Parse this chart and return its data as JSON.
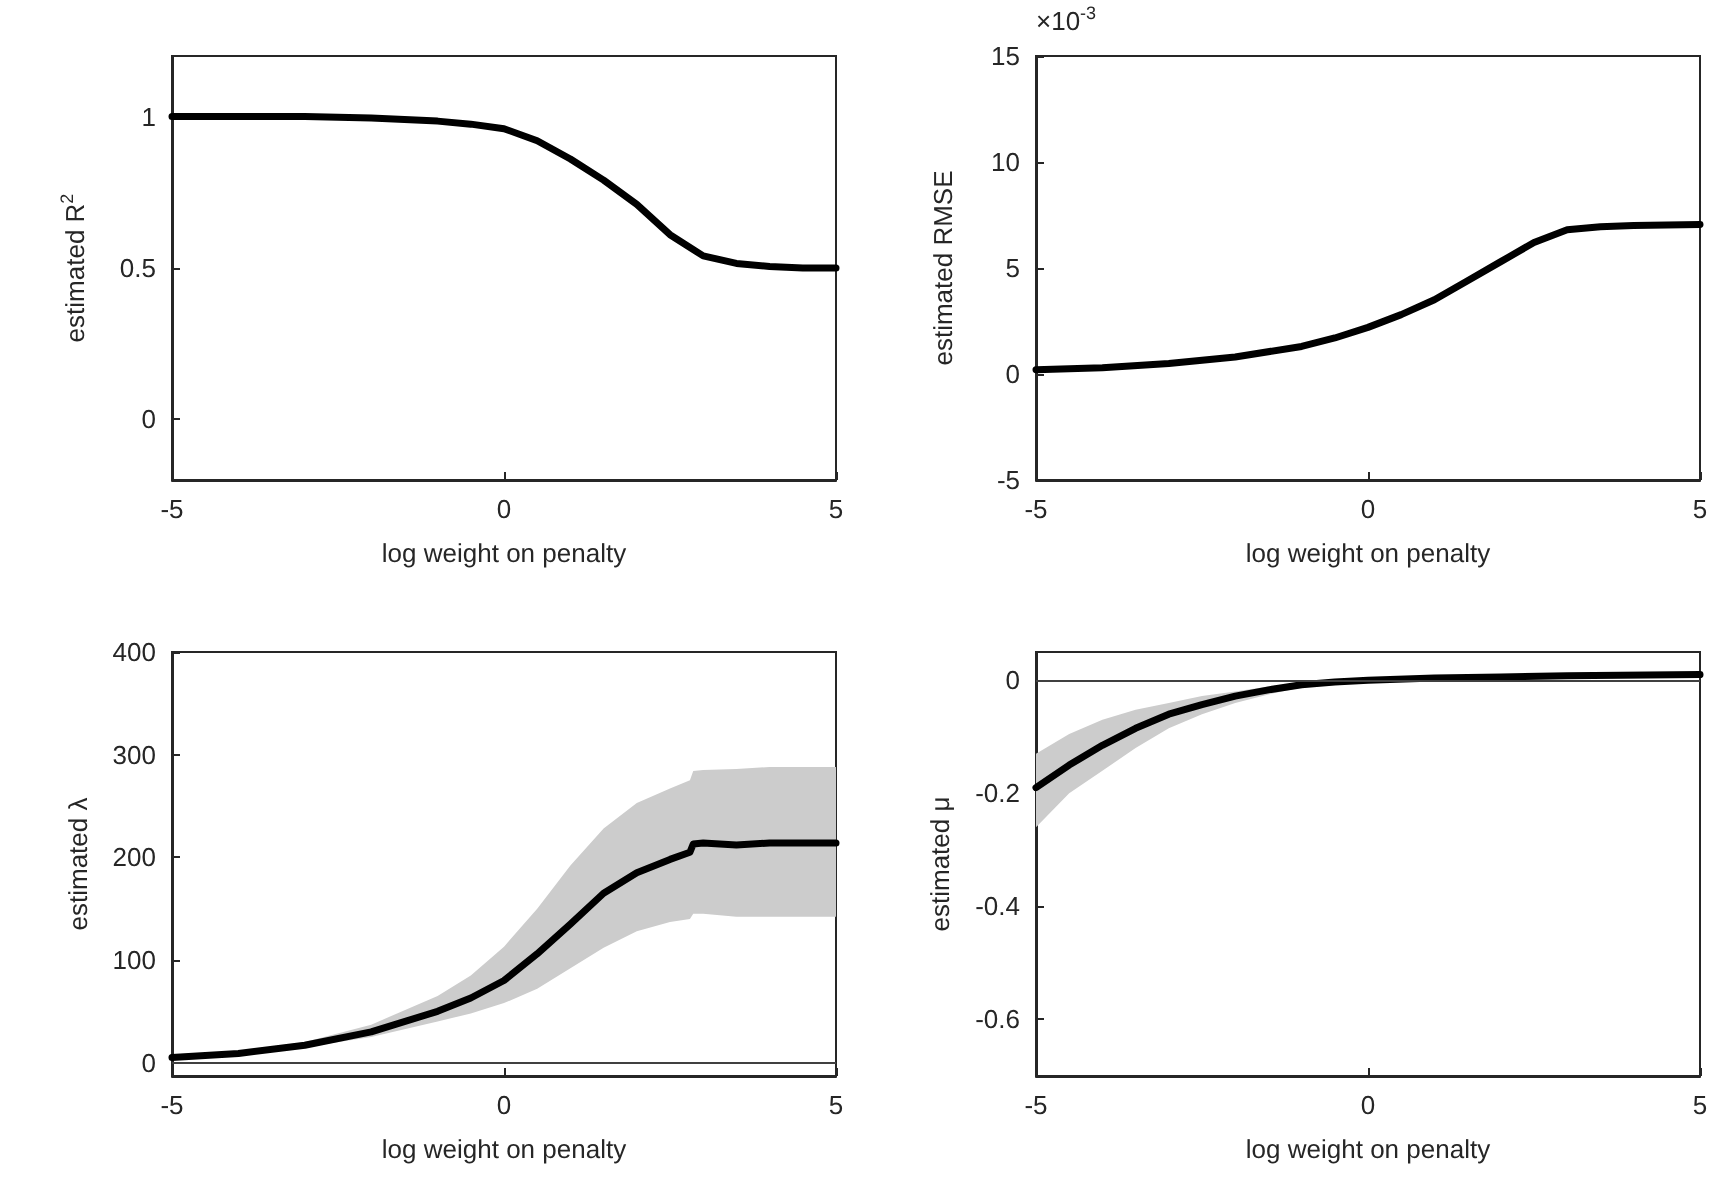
{
  "chart_data": [
    {
      "type": "line",
      "xlabel": "log weight on penalty",
      "ylabel": "estimated R$^{2}$",
      "xlim": [
        -5,
        5
      ],
      "xticks": [
        -5,
        0,
        5
      ],
      "ylim": [
        -0.2,
        1.2
      ],
      "yticks": [
        0,
        0.5,
        1
      ],
      "series": [
        {
          "color": "#000000",
          "x": [
            -5,
            -4,
            -3,
            -2,
            -1,
            -0.5,
            0,
            0.5,
            1,
            1.5,
            2,
            2.5,
            3,
            3.5,
            4,
            4.5,
            5
          ],
          "values": [
            1.0,
            1.0,
            1.0,
            0.995,
            0.985,
            0.975,
            0.96,
            0.92,
            0.86,
            0.79,
            0.71,
            0.61,
            0.54,
            0.515,
            0.505,
            0.5,
            0.5
          ]
        }
      ]
    },
    {
      "type": "line",
      "xlabel": "log weight on penalty",
      "ylabel": "estimated RMSE",
      "annotations": [
        "×10$^{-3}$"
      ],
      "xlim": [
        -5,
        5
      ],
      "xticks": [
        -5,
        0,
        5
      ],
      "ylim": [
        -5,
        15
      ],
      "yticks": [
        -5,
        0,
        5,
        10,
        15
      ],
      "series": [
        {
          "color": "#000000",
          "x": [
            -5,
            -4,
            -3,
            -2,
            -1,
            -0.5,
            0,
            0.5,
            1,
            1.5,
            2,
            2.5,
            3,
            3.5,
            4,
            5
          ],
          "values": [
            0.2,
            0.3,
            0.5,
            0.8,
            1.3,
            1.7,
            2.2,
            2.8,
            3.5,
            4.4,
            5.3,
            6.2,
            6.8,
            6.95,
            7.0,
            7.05
          ]
        }
      ]
    },
    {
      "type": "line",
      "xlabel": "log weight on penalty",
      "ylabel": "estimated λ",
      "xlim": [
        -5,
        5
      ],
      "xticks": [
        -5,
        0,
        5
      ],
      "ylim": [
        -13,
        400
      ],
      "yticks": [
        0,
        100,
        200,
        300,
        400
      ],
      "ref_lines": [
        {
          "axis": "y",
          "value": 0,
          "color": "#404040"
        }
      ],
      "series": [
        {
          "color": "#000000",
          "x": [
            -5,
            -4,
            -3,
            -2,
            -1,
            -0.5,
            0,
            0.5,
            1,
            1.5,
            2,
            2.5,
            2.8,
            2.85,
            3,
            3.5,
            4,
            5
          ],
          "values": [
            5,
            9,
            17,
            30,
            50,
            63,
            80,
            106,
            135,
            165,
            185,
            198,
            205,
            213,
            214,
            212,
            214,
            214
          ],
          "lower": [
            4,
            7,
            15,
            25,
            40,
            48,
            58,
            72,
            92,
            112,
            128,
            137,
            140,
            145,
            145,
            142,
            142,
            142
          ],
          "upper": [
            6,
            11,
            20,
            37,
            65,
            85,
            113,
            150,
            192,
            228,
            253,
            267,
            275,
            284,
            285,
            286,
            288,
            288
          ]
        }
      ]
    },
    {
      "type": "line",
      "xlabel": "log weight on penalty",
      "ylabel": "estimated μ",
      "xlim": [
        -5,
        5
      ],
      "xticks": [
        -5,
        0,
        5
      ],
      "ylim": [
        -0.7,
        0.05
      ],
      "yticks": [
        -0.6,
        -0.4,
        -0.2,
        0
      ],
      "ref_lines": [
        {
          "axis": "y",
          "value": 0,
          "color": "#404040"
        }
      ],
      "series": [
        {
          "color": "#000000",
          "x": [
            -5,
            -4.5,
            -4,
            -3.5,
            -3,
            -2.5,
            -2,
            -1.5,
            -1,
            -0.5,
            0,
            1,
            2,
            3,
            5
          ],
          "values": [
            -0.19,
            -0.15,
            -0.115,
            -0.085,
            -0.06,
            -0.043,
            -0.028,
            -0.017,
            -0.008,
            -0.003,
            0,
            0.004,
            0.006,
            0.008,
            0.01
          ],
          "lower": [
            -0.26,
            -0.2,
            -0.16,
            -0.12,
            -0.085,
            -0.06,
            -0.04,
            -0.025,
            -0.013,
            -0.006,
            -0.002,
            0.002,
            0.004,
            0.005,
            0.006
          ],
          "upper": [
            -0.13,
            -0.095,
            -0.07,
            -0.052,
            -0.04,
            -0.028,
            -0.02,
            -0.011,
            -0.005,
            -0.001,
            0.0,
            0.006,
            0.009,
            0.011,
            0.012
          ]
        }
      ]
    }
  ]
}
